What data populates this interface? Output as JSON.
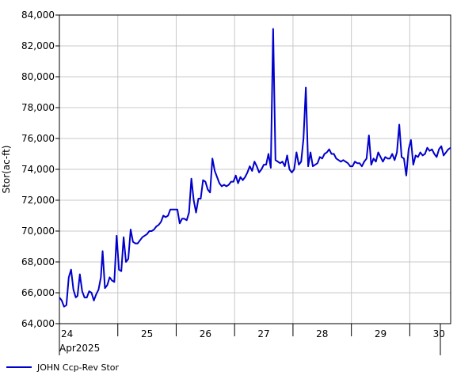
{
  "chart_data": {
    "type": "line",
    "xlabel": "",
    "ylabel": "Stor(ac-ft)",
    "ylim": [
      64000,
      84000
    ],
    "xlim": [
      24.0,
      30.7
    ],
    "grid": true,
    "legend_placement": "bottom-left",
    "y_ticks": [
      {
        "value": 64000,
        "label": "64,000"
      },
      {
        "value": 66000,
        "label": "66,000"
      },
      {
        "value": 68000,
        "label": "68,000"
      },
      {
        "value": 70000,
        "label": "70,000"
      },
      {
        "value": 72000,
        "label": "72,000"
      },
      {
        "value": 74000,
        "label": "74,000"
      },
      {
        "value": 76000,
        "label": "76,000"
      },
      {
        "value": 78000,
        "label": "78,000"
      },
      {
        "value": 80000,
        "label": "80,000"
      },
      {
        "value": 82000,
        "label": "82,000"
      },
      {
        "value": 84000,
        "label": "84,000"
      }
    ],
    "x_ticks": [
      {
        "value": 24,
        "label": "24"
      },
      {
        "value": 25,
        "label": "25"
      },
      {
        "value": 26,
        "label": "26"
      },
      {
        "value": 27,
        "label": "27"
      },
      {
        "value": 28,
        "label": "28"
      },
      {
        "value": 29,
        "label": "29"
      },
      {
        "value": 30,
        "label": "30"
      }
    ],
    "x_sublabel": "Apr2025",
    "series": [
      {
        "name": "JOHN Ccp-Rev Stor",
        "color": "#0000cc",
        "points": [
          [
            24.0,
            65700
          ],
          [
            24.04,
            65500
          ],
          [
            24.08,
            65100
          ],
          [
            24.12,
            65200
          ],
          [
            24.16,
            67000
          ],
          [
            24.2,
            67500
          ],
          [
            24.24,
            66200
          ],
          [
            24.28,
            65700
          ],
          [
            24.31,
            65800
          ],
          [
            24.35,
            67200
          ],
          [
            24.39,
            66100
          ],
          [
            24.43,
            65700
          ],
          [
            24.47,
            65700
          ],
          [
            24.51,
            66100
          ],
          [
            24.55,
            66000
          ],
          [
            24.59,
            65500
          ],
          [
            24.63,
            65900
          ],
          [
            24.67,
            66200
          ],
          [
            24.71,
            67000
          ],
          [
            24.74,
            68700
          ],
          [
            24.78,
            66300
          ],
          [
            24.82,
            66500
          ],
          [
            24.86,
            67000
          ],
          [
            24.9,
            66800
          ],
          [
            24.94,
            66700
          ],
          [
            24.98,
            69700
          ],
          [
            25.02,
            67500
          ],
          [
            25.06,
            67400
          ],
          [
            25.1,
            69600
          ],
          [
            25.14,
            68000
          ],
          [
            25.18,
            68200
          ],
          [
            25.22,
            70100
          ],
          [
            25.26,
            69300
          ],
          [
            25.3,
            69200
          ],
          [
            25.34,
            69200
          ],
          [
            25.38,
            69400
          ],
          [
            25.42,
            69600
          ],
          [
            25.46,
            69700
          ],
          [
            25.5,
            69800
          ],
          [
            25.54,
            70000
          ],
          [
            25.58,
            70000
          ],
          [
            25.62,
            70100
          ],
          [
            25.66,
            70300
          ],
          [
            25.7,
            70400
          ],
          [
            25.74,
            70600
          ],
          [
            25.78,
            71000
          ],
          [
            25.82,
            70900
          ],
          [
            25.86,
            71000
          ],
          [
            25.9,
            71400
          ],
          [
            25.94,
            71400
          ],
          [
            25.98,
            71400
          ],
          [
            26.02,
            71400
          ],
          [
            26.06,
            70500
          ],
          [
            26.1,
            70800
          ],
          [
            26.14,
            70800
          ],
          [
            26.18,
            70700
          ],
          [
            26.22,
            71200
          ],
          [
            26.26,
            73400
          ],
          [
            26.3,
            72000
          ],
          [
            26.34,
            71200
          ],
          [
            26.38,
            72100
          ],
          [
            26.42,
            72100
          ],
          [
            26.46,
            73300
          ],
          [
            26.5,
            73200
          ],
          [
            26.54,
            72700
          ],
          [
            26.58,
            72500
          ],
          [
            26.62,
            74700
          ],
          [
            26.66,
            73900
          ],
          [
            26.7,
            73500
          ],
          [
            26.74,
            73100
          ],
          [
            26.78,
            72900
          ],
          [
            26.82,
            73000
          ],
          [
            26.86,
            72900
          ],
          [
            26.9,
            73000
          ],
          [
            26.94,
            73200
          ],
          [
            26.98,
            73200
          ],
          [
            27.02,
            73600
          ],
          [
            27.06,
            73100
          ],
          [
            27.1,
            73500
          ],
          [
            27.14,
            73300
          ],
          [
            27.18,
            73500
          ],
          [
            27.22,
            73800
          ],
          [
            27.26,
            74200
          ],
          [
            27.3,
            73900
          ],
          [
            27.34,
            74500
          ],
          [
            27.38,
            74200
          ],
          [
            27.42,
            73800
          ],
          [
            27.46,
            74000
          ],
          [
            27.5,
            74300
          ],
          [
            27.54,
            74300
          ],
          [
            27.58,
            75000
          ],
          [
            27.62,
            74100
          ],
          [
            27.66,
            83100
          ],
          [
            27.7,
            74600
          ],
          [
            27.74,
            74500
          ],
          [
            27.78,
            74400
          ],
          [
            27.82,
            74500
          ],
          [
            27.86,
            74200
          ],
          [
            27.9,
            74900
          ],
          [
            27.94,
            74000
          ],
          [
            27.98,
            73800
          ],
          [
            28.02,
            74000
          ],
          [
            28.06,
            75100
          ],
          [
            28.1,
            74300
          ],
          [
            28.14,
            74500
          ],
          [
            28.18,
            76000
          ],
          [
            28.22,
            79300
          ],
          [
            28.26,
            74200
          ],
          [
            28.3,
            75100
          ],
          [
            28.34,
            74200
          ],
          [
            28.38,
            74300
          ],
          [
            28.42,
            74400
          ],
          [
            28.46,
            74800
          ],
          [
            28.5,
            74700
          ],
          [
            28.54,
            75000
          ],
          [
            28.58,
            75100
          ],
          [
            28.62,
            75300
          ],
          [
            28.66,
            75000
          ],
          [
            28.7,
            75000
          ],
          [
            28.74,
            74700
          ],
          [
            28.78,
            74600
          ],
          [
            28.82,
            74500
          ],
          [
            28.86,
            74600
          ],
          [
            28.9,
            74500
          ],
          [
            28.94,
            74400
          ],
          [
            28.98,
            74200
          ],
          [
            29.02,
            74200
          ],
          [
            29.06,
            74500
          ],
          [
            29.1,
            74400
          ],
          [
            29.14,
            74400
          ],
          [
            29.18,
            74200
          ],
          [
            29.22,
            74500
          ],
          [
            29.26,
            74700
          ],
          [
            29.3,
            76200
          ],
          [
            29.34,
            74300
          ],
          [
            29.38,
            74700
          ],
          [
            29.42,
            74500
          ],
          [
            29.46,
            75100
          ],
          [
            29.5,
            74800
          ],
          [
            29.54,
            74500
          ],
          [
            29.58,
            74800
          ],
          [
            29.62,
            74700
          ],
          [
            29.66,
            74700
          ],
          [
            29.7,
            75000
          ],
          [
            29.74,
            74600
          ],
          [
            29.78,
            75100
          ],
          [
            29.82,
            76900
          ],
          [
            29.86,
            74800
          ],
          [
            29.9,
            74700
          ],
          [
            29.94,
            73600
          ],
          [
            29.98,
            75300
          ],
          [
            30.02,
            75900
          ],
          [
            30.06,
            74300
          ],
          [
            30.1,
            74900
          ],
          [
            30.14,
            74800
          ],
          [
            30.18,
            75100
          ],
          [
            30.22,
            74900
          ],
          [
            30.26,
            75000
          ],
          [
            30.3,
            75400
          ],
          [
            30.34,
            75200
          ],
          [
            30.38,
            75300
          ],
          [
            30.42,
            75000
          ],
          [
            30.46,
            74800
          ],
          [
            30.5,
            75300
          ],
          [
            30.54,
            75500
          ],
          [
            30.58,
            74900
          ],
          [
            30.62,
            75100
          ],
          [
            30.66,
            75300
          ],
          [
            30.7,
            75400
          ]
        ]
      }
    ]
  }
}
